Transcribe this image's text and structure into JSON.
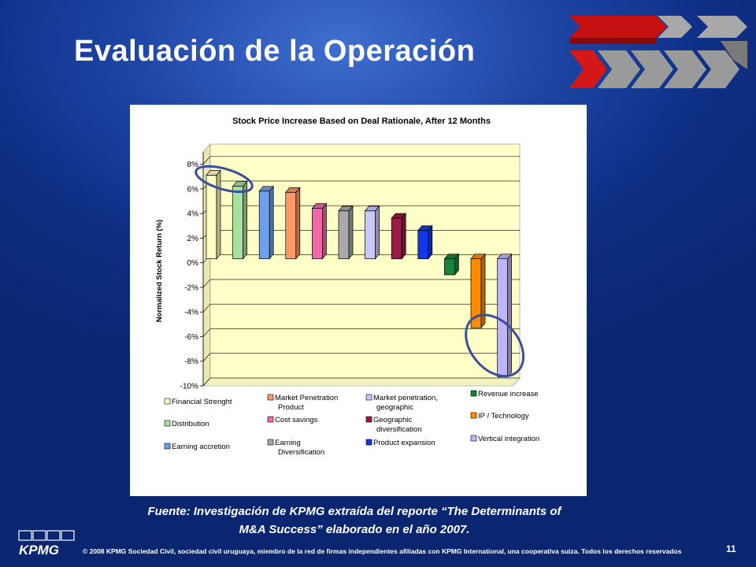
{
  "slide": {
    "title": "Evaluación de la Operación",
    "source_line1": "Fuente: Investigación de KPMG extraída del reporte “The Determinants of",
    "source_line2": "M&A Success” elaborado en el año 2007.",
    "footer_text": "© 2008 KPMG Sociedad Civil, sociedad civil uruguaya, miembro de la red de firmas independientes afiliadas con KPMG International,  una cooperativa suiza. Todos los derechos reservados",
    "page_number": "11",
    "logo_text": "KPMG"
  },
  "chart_data": {
    "type": "bar",
    "title": "Stock Price Increase Based on Deal Rationale, After 12 Months",
    "ylabel": "Normalized Stock Return (%)",
    "xlabel": "",
    "ylim": [
      -10,
      9
    ],
    "yticks": [
      8,
      6,
      4,
      2,
      0,
      -2,
      -4,
      -6,
      -8,
      -10
    ],
    "ytick_labels": [
      "8%",
      "6%",
      "4%",
      "2%",
      "0%",
      "-2%",
      "-4%",
      "-6%",
      "-8%",
      "-10%"
    ],
    "grid": true,
    "legend_position": "bottom",
    "categories": [
      "Financial Strenght",
      "Distribution",
      "Earning accretion",
      "Market Penetration Product",
      "Cost savings",
      "Earning Diversification",
      "Market penetration, geographic",
      "Geographic diversification",
      "Product expansion",
      "Revenue increase",
      "IP / Technology",
      "Vertical integration"
    ],
    "legend_lines": [
      [
        "Financial Strenght"
      ],
      [
        "Distribution"
      ],
      [
        "Earning accretion"
      ],
      [
        "Market Penetration",
        "Product"
      ],
      [
        "Cost savings"
      ],
      [
        "Earning",
        "Diversification"
      ],
      [
        "Market penetration,",
        "geographic"
      ],
      [
        "Geographic",
        "diversification"
      ],
      [
        "Product expansion"
      ],
      [
        "Revenue increase"
      ],
      [
        "IP / Technology"
      ],
      [
        "Vertical integration"
      ]
    ],
    "values": [
      6.8,
      5.9,
      5.5,
      5.4,
      4.1,
      3.9,
      3.9,
      3.3,
      2.3,
      -1.3,
      -5.6,
      -9.6
    ],
    "colors": [
      "#ffffc0",
      "#a8e0a0",
      "#6f9ff0",
      "#ff9966",
      "#f06aa8",
      "#a9a9a9",
      "#c8c8ff",
      "#9a1a48",
      "#1038e8",
      "#16823a",
      "#ff8c00",
      "#c0b4ff"
    ],
    "annotations": [
      {
        "type": "ellipse",
        "around_category": "Financial Strenght"
      },
      {
        "type": "ellipse",
        "around_category": "Vertical integration"
      }
    ]
  },
  "colors": {
    "background": "#1f47a8",
    "plot_area": "#ffffc8",
    "highlight_ellipse": "#3a4f9a"
  }
}
